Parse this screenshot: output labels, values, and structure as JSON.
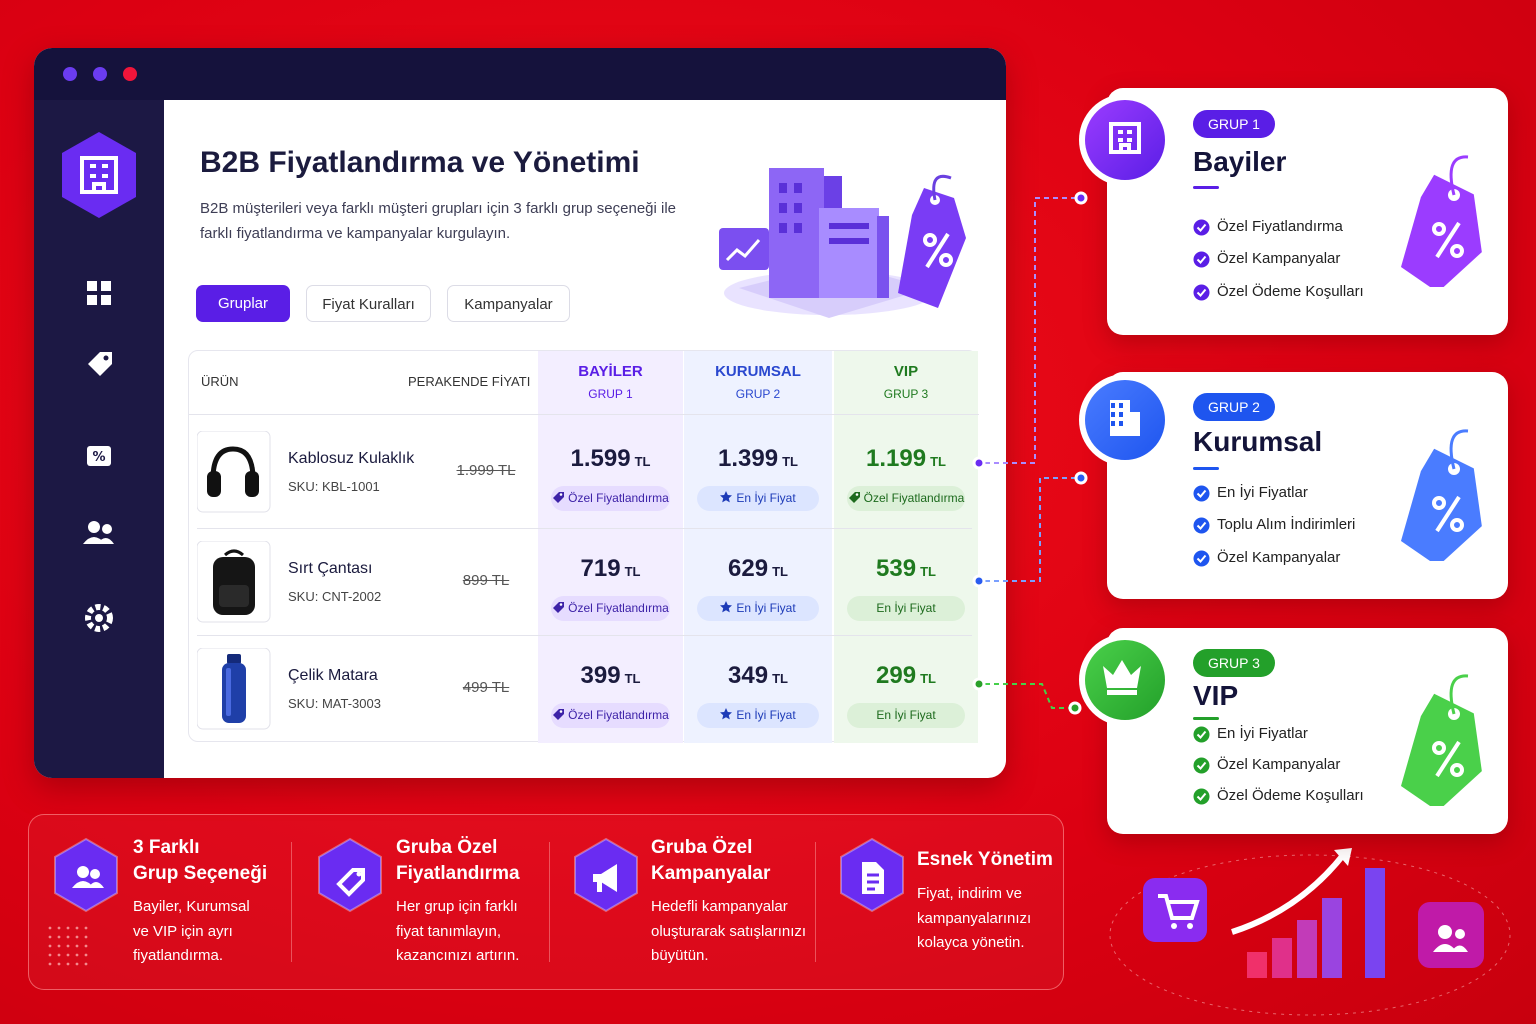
{
  "window": {
    "title": "B2B Fiyatlandırma ve Yönetimi",
    "description": [
      "B2B müşterileri veya farklı müşteri grupları için 3 farklı grup seçeneği ile",
      "farklı fiyatlandırma ve kampanyalar kurgulayın."
    ],
    "tabs": [
      "Gruplar",
      "Fiyat Kuralları",
      "Kampanyalar"
    ]
  },
  "table": {
    "headers": {
      "product": "ÜRÜN",
      "retail": "PERAKENDE FİYATI",
      "groups": [
        {
          "name": "BAYİLER",
          "sub": "GRUP 1"
        },
        {
          "name": "KURUMSAL",
          "sub": "GRUP 2"
        },
        {
          "name": "VIP",
          "sub": "GRUP 3"
        }
      ]
    },
    "rows": [
      {
        "name": "Kablosuz Kulaklık",
        "sku": "SKU: KBL-1001",
        "retail": "1.999 TL",
        "prices": [
          {
            "price": "1.599",
            "unit": "TL",
            "badge": "Özel Fiyatlandırma"
          },
          {
            "price": "1.399",
            "unit": "TL",
            "badge": "En İyi Fiyat"
          },
          {
            "price": "1.199",
            "unit": "TL",
            "badge": "Özel Fiyatlandırma"
          }
        ]
      },
      {
        "name": "Sırt Çantası",
        "sku": "SKU: CNT-2002",
        "retail": "899 TL",
        "prices": [
          {
            "price": "719",
            "unit": "TL",
            "badge": "Özel Fiyatlandırma"
          },
          {
            "price": "629",
            "unit": "TL",
            "badge": "En İyi Fiyat"
          },
          {
            "price": "539",
            "unit": "TL",
            "badge": "En İyi Fiyat"
          }
        ]
      },
      {
        "name": "Çelik Matara",
        "sku": "SKU: MAT-3003",
        "retail": "499 TL",
        "prices": [
          {
            "price": "399",
            "unit": "TL",
            "badge": "Özel Fiyatlandırma"
          },
          {
            "price": "349",
            "unit": "TL",
            "badge": "En İyi Fiyat"
          },
          {
            "price": "299",
            "unit": "TL",
            "badge": "En İyi Fiyat"
          }
        ]
      }
    ]
  },
  "cards": [
    {
      "badge": "GRUP 1",
      "title": "Bayiler",
      "items": [
        "Özel Fiyatlandırma",
        "Özel Kampanyalar",
        "Özel Ödeme Koşulları"
      ]
    },
    {
      "badge": "GRUP 2",
      "title": "Kurumsal",
      "items": [
        "En İyi Fiyatlar",
        "Toplu Alım İndirimleri",
        "Özel Kampanyalar"
      ]
    },
    {
      "badge": "GRUP 3",
      "title": "VIP",
      "items": [
        "En İyi Fiyatlar",
        "Özel Kampanyalar",
        "Özel Ödeme Koşulları"
      ]
    }
  ],
  "features": [
    {
      "title": [
        "3 Farklı",
        "Grup Seçeneği"
      ],
      "text": [
        "Bayiler, Kurumsal",
        "ve VIP için ayrı",
        "fiyatlandırma."
      ]
    },
    {
      "title": [
        "Gruba Özel",
        "Fiyatlandırma"
      ],
      "text": [
        "Her grup için farklı",
        "fiyat tanımlayın,",
        "kazancınızı artırın."
      ]
    },
    {
      "title": [
        "Gruba Özel",
        "Kampanyalar"
      ],
      "text": [
        "Hedefli kampanyalar",
        "oluşturarak satışlarınızı",
        "büyütün."
      ]
    },
    {
      "title": [
        "Esnek Yönetim"
      ],
      "text": [
        "Fiyat, indirim ve",
        "kampanyalarınızı",
        "kolayca yönetin."
      ]
    }
  ]
}
